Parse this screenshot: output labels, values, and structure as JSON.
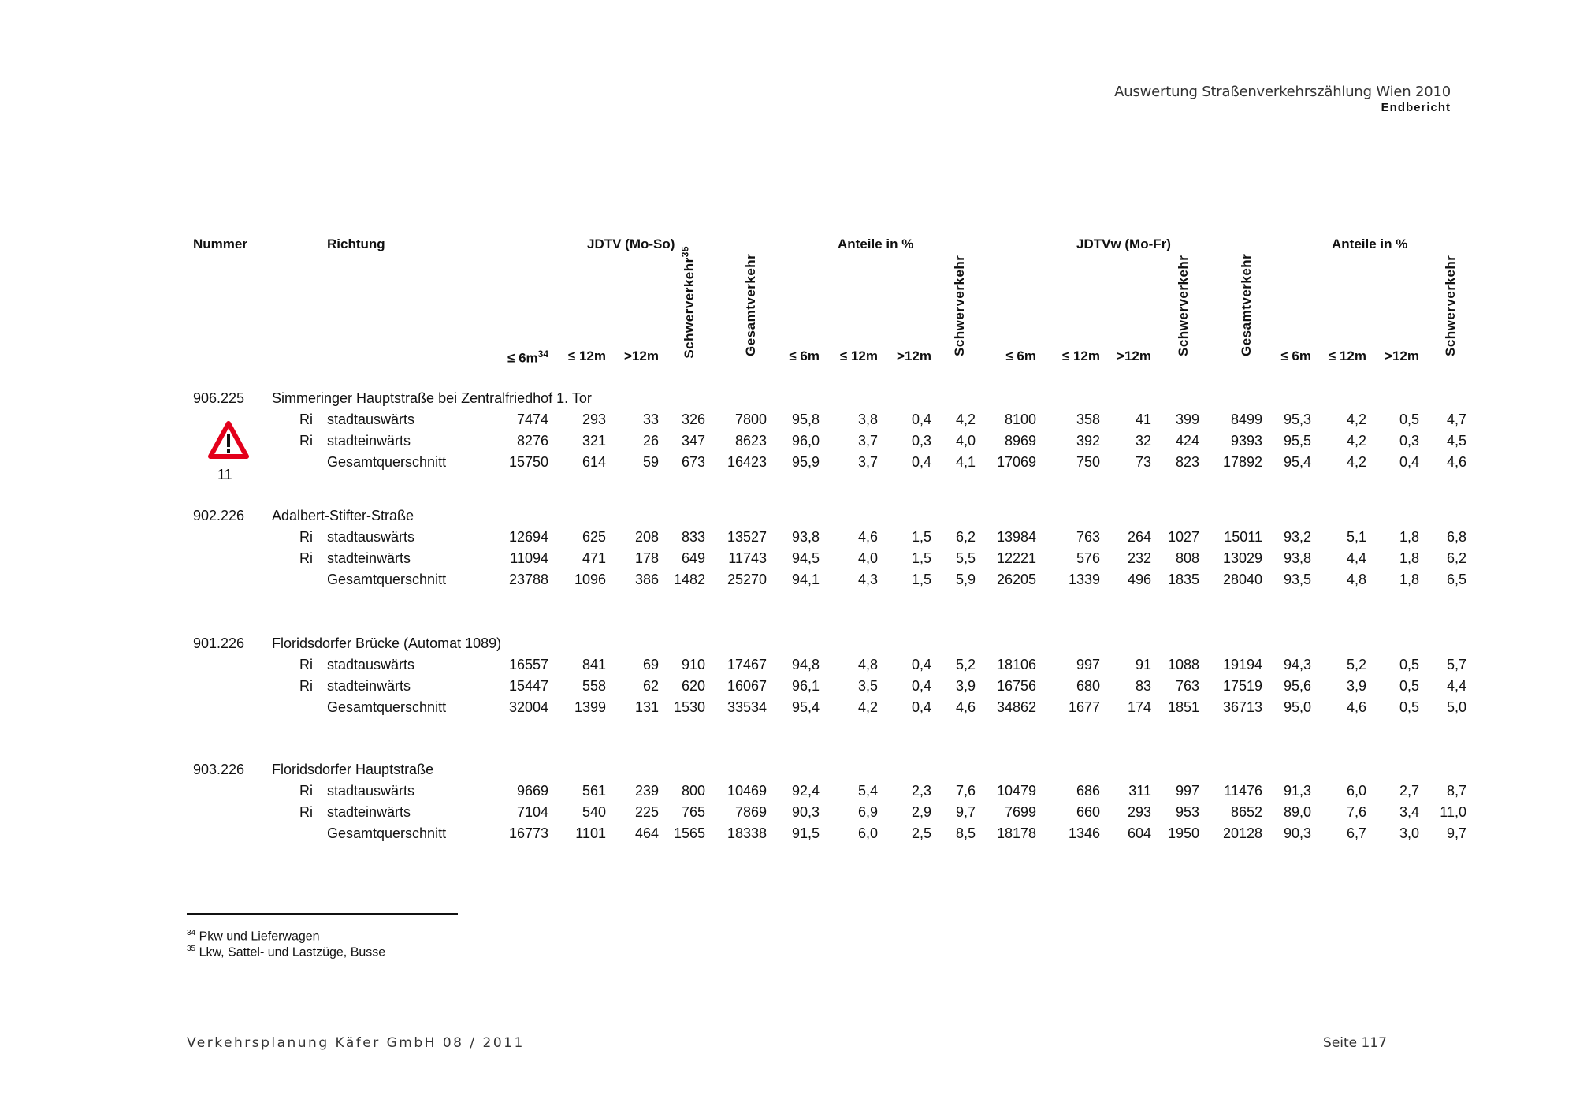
{
  "header": {
    "title": "Auswertung Straßenverkehrszählung Wien 2010",
    "subtitle": "Endbericht"
  },
  "table": {
    "col_nummer": "Nummer",
    "col_richtung": "Richtung",
    "group_jdtv": "JDTV (Mo-So)",
    "group_anteile_1": "Anteile in %",
    "group_jdtvw": "JDTVw (Mo-Fr)",
    "group_anteile_2": "Anteile in %",
    "sub_le6m_fn": "≤ 6m",
    "sub_le6m_fn_sup": "34",
    "sub_le6m": "≤ 6m",
    "sub_le12m": "≤ 12m",
    "sub_gt12m": ">12m",
    "rot_schwer_fn": "Schwerverkehr",
    "rot_schwer_fn_sup": "35",
    "rot_schwer": "Schwerverkehr",
    "rot_gesamt": "Gesamtverkehr",
    "warning": {
      "icon": "warning-triangle-icon",
      "color": "#e3001b",
      "label": "11"
    },
    "groups": [
      {
        "nummer": "906.225",
        "name": "Simmeringer Hauptstraße bei Zentralfriedhof 1. Tor",
        "rows": [
          {
            "ri": "Ri",
            "richtung": "stadtauswärts",
            "values": [
              "7474",
              "293",
              "33",
              "326",
              "7800",
              "95,8",
              "3,8",
              "0,4",
              "4,2",
              "8100",
              "358",
              "41",
              "399",
              "8499",
              "95,3",
              "4,2",
              "0,5",
              "4,7"
            ]
          },
          {
            "ri": "Ri",
            "richtung": "stadteinwärts",
            "values": [
              "8276",
              "321",
              "26",
              "347",
              "8623",
              "96,0",
              "3,7",
              "0,3",
              "4,0",
              "8969",
              "392",
              "32",
              "424",
              "9393",
              "95,5",
              "4,2",
              "0,3",
              "4,5"
            ]
          },
          {
            "ri": "",
            "richtung": "Gesamtquerschnitt",
            "values": [
              "15750",
              "614",
              "59",
              "673",
              "16423",
              "95,9",
              "3,7",
              "0,4",
              "4,1",
              "17069",
              "750",
              "73",
              "823",
              "17892",
              "95,4",
              "4,2",
              "0,4",
              "4,6"
            ]
          }
        ]
      },
      {
        "nummer": "902.226",
        "name": "Adalbert-Stifter-Straße",
        "rows": [
          {
            "ri": "Ri",
            "richtung": "stadtauswärts",
            "values": [
              "12694",
              "625",
              "208",
              "833",
              "13527",
              "93,8",
              "4,6",
              "1,5",
              "6,2",
              "13984",
              "763",
              "264",
              "1027",
              "15011",
              "93,2",
              "5,1",
              "1,8",
              "6,8"
            ]
          },
          {
            "ri": "Ri",
            "richtung": "stadteinwärts",
            "values": [
              "11094",
              "471",
              "178",
              "649",
              "11743",
              "94,5",
              "4,0",
              "1,5",
              "5,5",
              "12221",
              "576",
              "232",
              "808",
              "13029",
              "93,8",
              "4,4",
              "1,8",
              "6,2"
            ]
          },
          {
            "ri": "",
            "richtung": "Gesamtquerschnitt",
            "values": [
              "23788",
              "1096",
              "386",
              "1482",
              "25270",
              "94,1",
              "4,3",
              "1,5",
              "5,9",
              "26205",
              "1339",
              "496",
              "1835",
              "28040",
              "93,5",
              "4,8",
              "1,8",
              "6,5"
            ]
          }
        ]
      },
      {
        "nummer": "901.226",
        "name": "Floridsdorfer Brücke (Automat 1089)",
        "rows": [
          {
            "ri": "Ri",
            "richtung": "stadtauswärts",
            "values": [
              "16557",
              "841",
              "69",
              "910",
              "17467",
              "94,8",
              "4,8",
              "0,4",
              "5,2",
              "18106",
              "997",
              "91",
              "1088",
              "19194",
              "94,3",
              "5,2",
              "0,5",
              "5,7"
            ]
          },
          {
            "ri": "Ri",
            "richtung": "stadteinwärts",
            "values": [
              "15447",
              "558",
              "62",
              "620",
              "16067",
              "96,1",
              "3,5",
              "0,4",
              "3,9",
              "16756",
              "680",
              "83",
              "763",
              "17519",
              "95,6",
              "3,9",
              "0,5",
              "4,4"
            ]
          },
          {
            "ri": "",
            "richtung": "Gesamtquerschnitt",
            "values": [
              "32004",
              "1399",
              "131",
              "1530",
              "33534",
              "95,4",
              "4,2",
              "0,4",
              "4,6",
              "34862",
              "1677",
              "174",
              "1851",
              "36713",
              "95,0",
              "4,6",
              "0,5",
              "5,0"
            ]
          }
        ]
      },
      {
        "nummer": "903.226",
        "name": "Floridsdorfer Hauptstraße",
        "rows": [
          {
            "ri": "Ri",
            "richtung": "stadtauswärts",
            "values": [
              "9669",
              "561",
              "239",
              "800",
              "10469",
              "92,4",
              "5,4",
              "2,3",
              "7,6",
              "10479",
              "686",
              "311",
              "997",
              "11476",
              "91,3",
              "6,0",
              "2,7",
              "8,7"
            ]
          },
          {
            "ri": "Ri",
            "richtung": "stadteinwärts",
            "values": [
              "7104",
              "540",
              "225",
              "765",
              "7869",
              "90,3",
              "6,9",
              "2,9",
              "9,7",
              "7699",
              "660",
              "293",
              "953",
              "8652",
              "89,0",
              "7,6",
              "3,4",
              "11,0"
            ]
          },
          {
            "ri": "",
            "richtung": "Gesamtquerschnitt",
            "values": [
              "16773",
              "1101",
              "464",
              "1565",
              "18338",
              "91,5",
              "6,0",
              "2,5",
              "8,5",
              "18178",
              "1346",
              "604",
              "1950",
              "20128",
              "90,3",
              "6,7",
              "3,0",
              "9,7"
            ]
          }
        ]
      }
    ]
  },
  "footnotes": [
    {
      "num": "34",
      "text": "Pkw und Lieferwagen"
    },
    {
      "num": "35",
      "text": "Lkw, Sattel- und Lastzüge, Busse"
    }
  ],
  "footer": {
    "left": "Verkehrsplanung Käfer GmbH  08 / 2011",
    "right": "Seite 117"
  }
}
